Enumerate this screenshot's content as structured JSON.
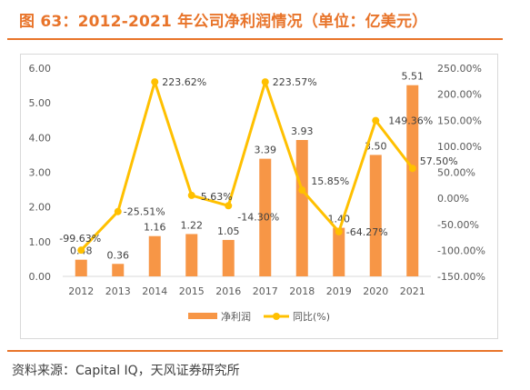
{
  "figure": {
    "title": "图 63：2012-2021 年公司净利润情况（单位：亿美元）",
    "source": "资料来源：Capital IQ，天风证券研究所",
    "accent_color": "#E8742A"
  },
  "chart_data": {
    "type": "bar",
    "categories": [
      "2012",
      "2013",
      "2014",
      "2015",
      "2016",
      "2017",
      "2018",
      "2019",
      "2020",
      "2021"
    ],
    "series": [
      {
        "name": "净利润",
        "type": "bar",
        "axis": "left",
        "color": "#F79646",
        "values": [
          0.48,
          0.36,
          1.16,
          1.22,
          1.05,
          3.39,
          3.93,
          1.4,
          3.5,
          5.51
        ],
        "labels": [
          "0.48",
          "0.36",
          "1.16",
          "1.22",
          "1.05",
          "3.39",
          "3.93",
          "1.40",
          "3.50",
          "5.51"
        ]
      },
      {
        "name": "同比(%)",
        "type": "line",
        "axis": "right",
        "color": "#FFC000",
        "values": [
          -99.63,
          -25.51,
          223.62,
          5.63,
          -14.3,
          223.57,
          15.85,
          -64.27,
          149.36,
          57.5
        ],
        "labels": [
          "-99.63%",
          "-25.51%",
          "223.62%",
          "5.63%",
          "-14.30%",
          "223.57%",
          "15.85%",
          "-64.27%",
          "149.36%",
          "57.50%"
        ]
      }
    ],
    "y_left": {
      "min": 0,
      "max": 6,
      "step": 1,
      "ticks": [
        "0.00",
        "1.00",
        "2.00",
        "3.00",
        "4.00",
        "5.00",
        "6.00"
      ]
    },
    "y_right": {
      "min": -150,
      "max": 250,
      "step": 50,
      "ticks": [
        "-150.00%",
        "-100.00%",
        "-50.00%",
        "0.00%",
        "50.00%",
        "100.00%",
        "150.00%",
        "200.00%",
        "250.00%"
      ]
    },
    "grid": false,
    "legend_position": "bottom"
  }
}
